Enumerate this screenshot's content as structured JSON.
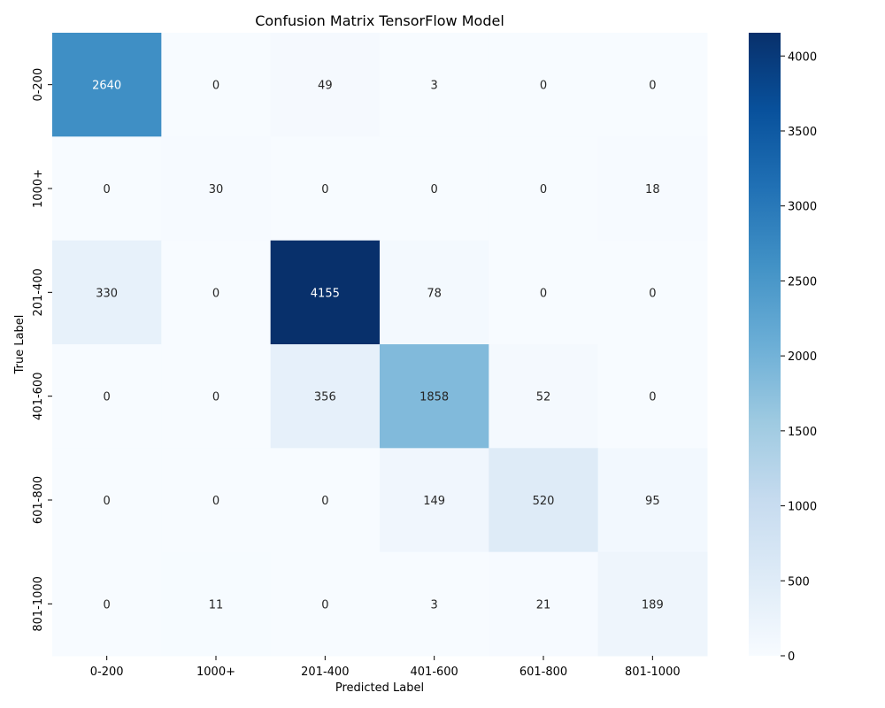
{
  "chart_data": {
    "type": "heatmap",
    "title": "Confusion Matrix TensorFlow Model",
    "xlabel": "Predicted Label",
    "ylabel": "True Label",
    "x_categories": [
      "0-200",
      "1000+",
      "201-400",
      "401-600",
      "601-800",
      "801-1000"
    ],
    "y_categories": [
      "0-200",
      "1000+",
      "201-400",
      "401-600",
      "601-800",
      "801-1000"
    ],
    "values": [
      [
        2640,
        0,
        49,
        3,
        0,
        0
      ],
      [
        0,
        30,
        0,
        0,
        0,
        18
      ],
      [
        330,
        0,
        4155,
        78,
        0,
        0
      ],
      [
        0,
        0,
        356,
        1858,
        52,
        0
      ],
      [
        0,
        0,
        0,
        149,
        520,
        95
      ],
      [
        0,
        11,
        0,
        3,
        21,
        189
      ]
    ],
    "colorbar": {
      "min": 0,
      "max": 4155,
      "ticks": [
        0,
        500,
        1000,
        1500,
        2000,
        2500,
        3000,
        3500,
        4000
      ],
      "colormap": "Blues"
    }
  }
}
